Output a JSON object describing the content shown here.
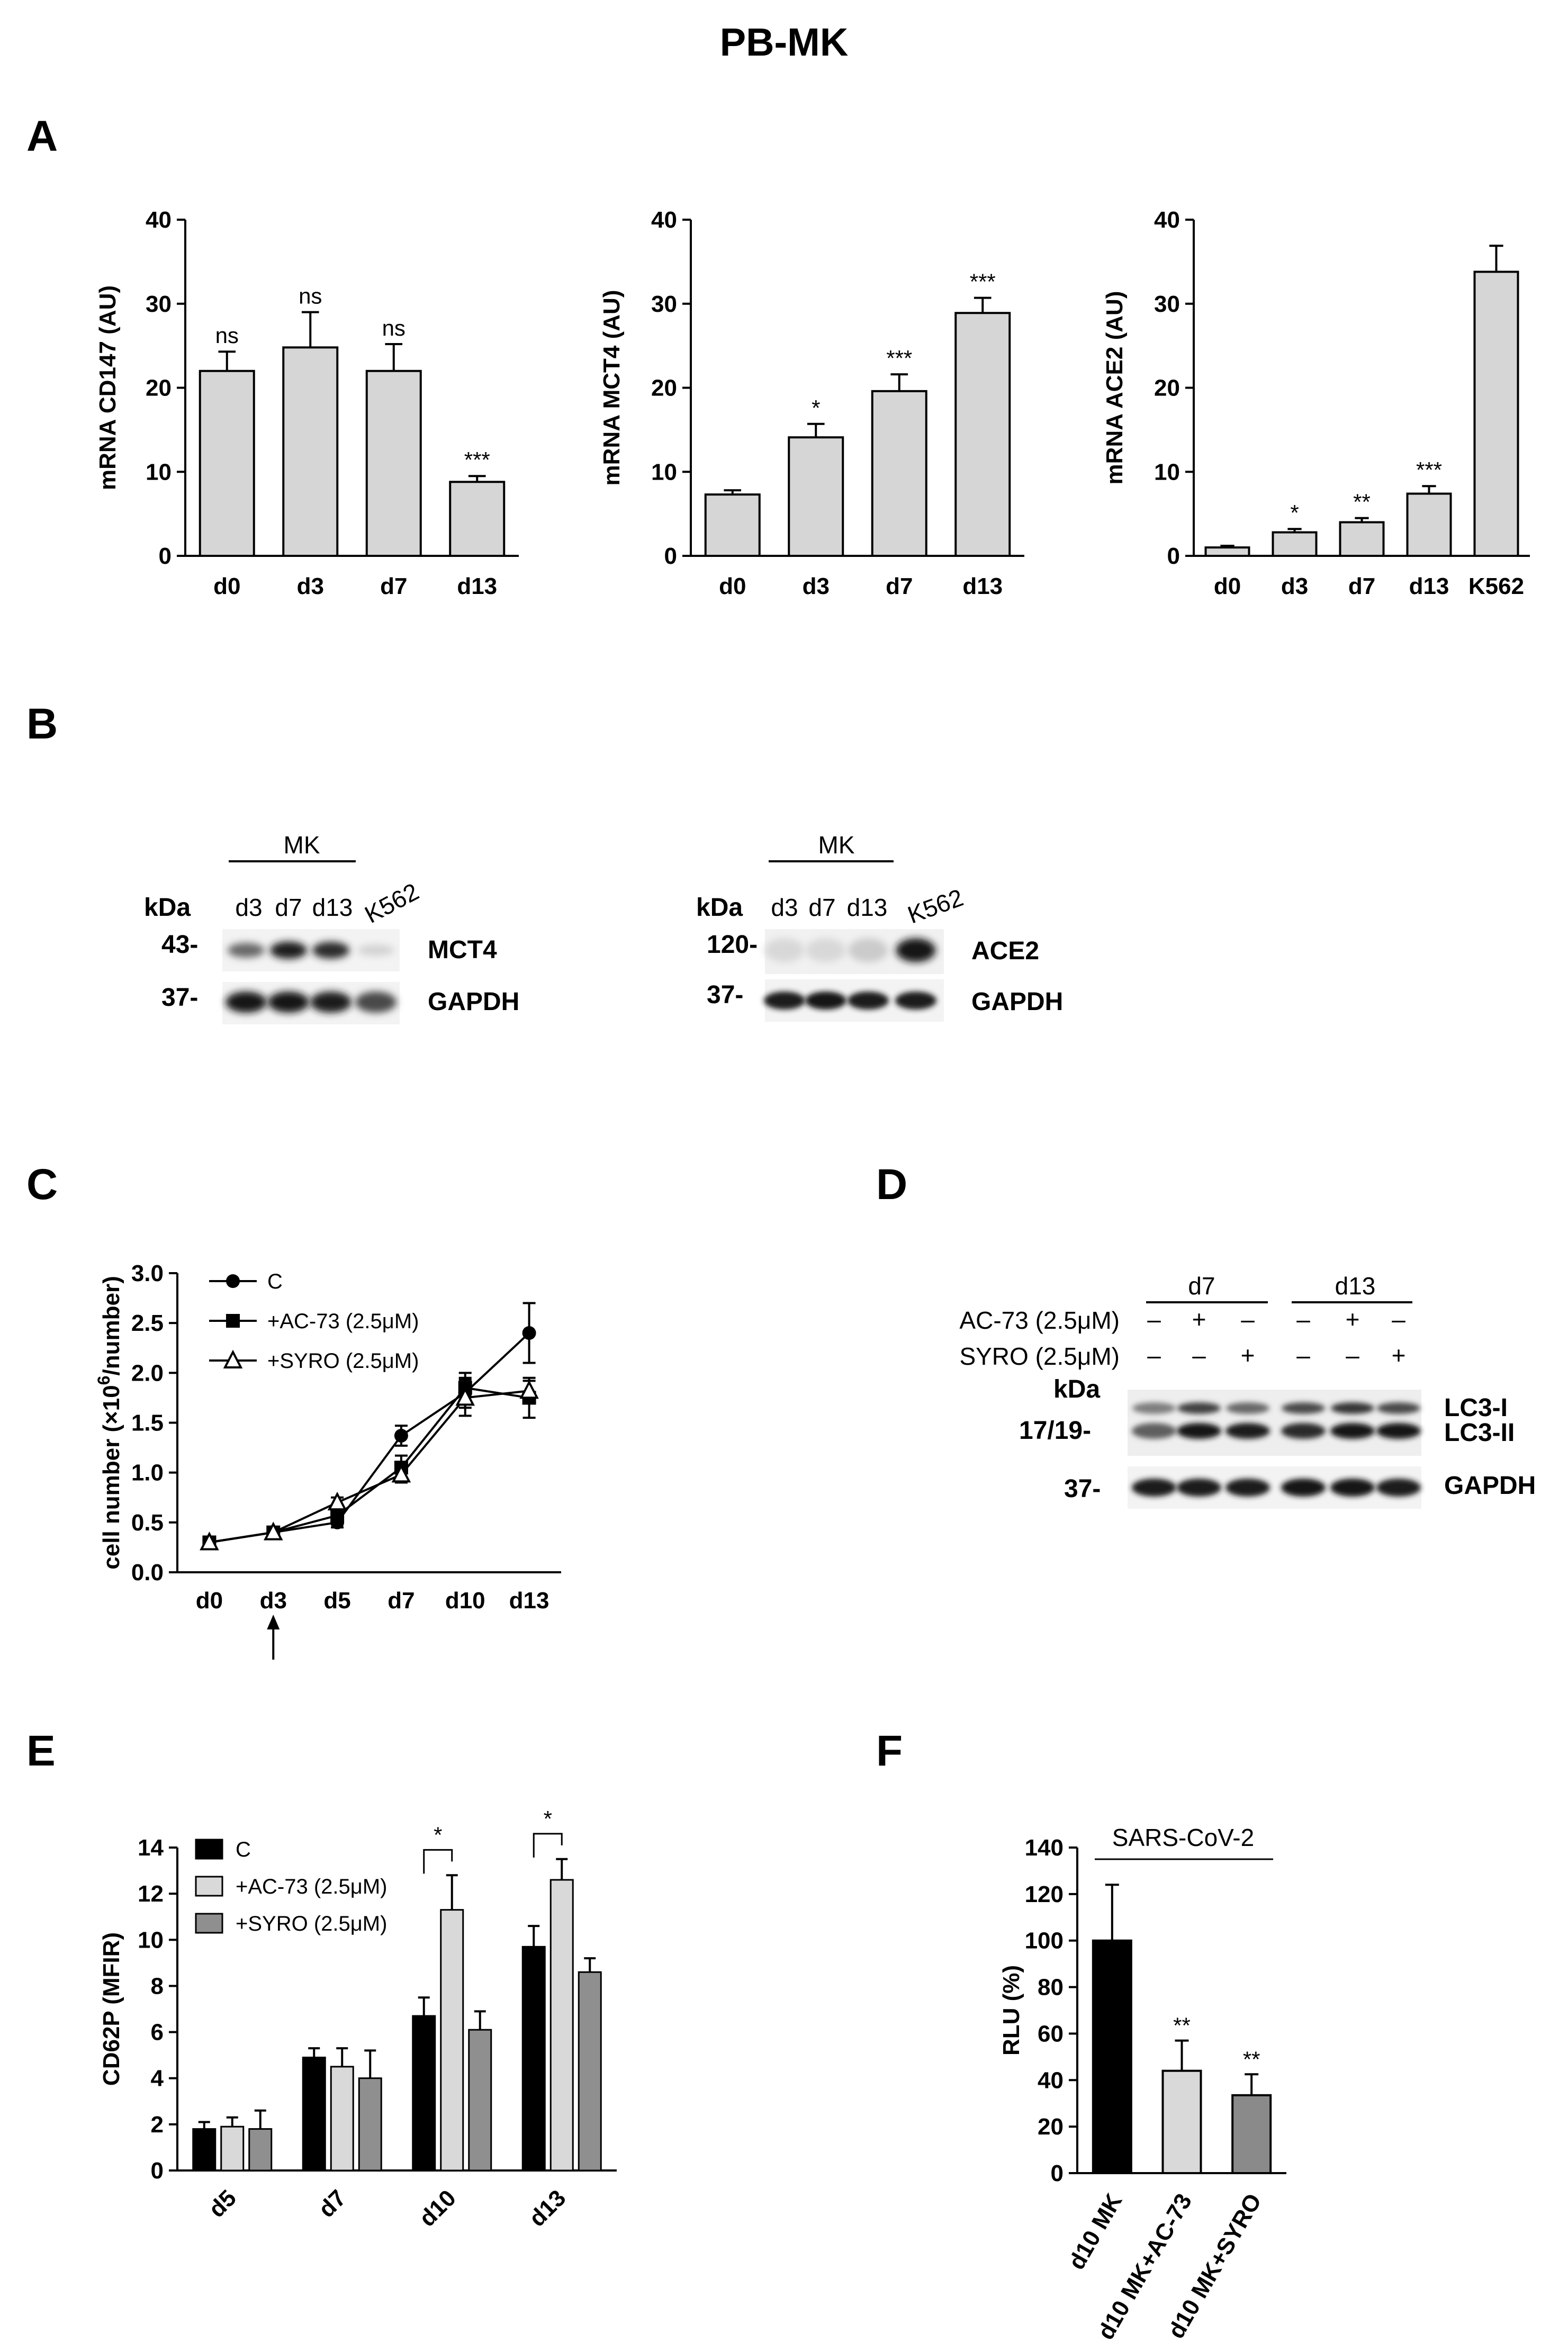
{
  "figure": {
    "title": "PB-MK",
    "panel_labels": [
      "A",
      "B",
      "C",
      "D",
      "E",
      "F"
    ]
  },
  "chart_data": [
    {
      "id": "A1",
      "type": "bar",
      "ylabel": "mRNA CD147 (AU)",
      "xlabel": "",
      "ylim": [
        0,
        40
      ],
      "yticks": [
        0,
        10,
        20,
        30,
        40
      ],
      "categories": [
        "d0",
        "d3",
        "d7",
        "d13"
      ],
      "values": [
        22,
        24.8,
        22,
        8.8
      ],
      "errors": [
        2.3,
        4.2,
        3.2,
        0.7
      ],
      "significance": [
        "ns",
        "ns",
        "ns",
        "***"
      ],
      "bar_color": "#d6d6d6"
    },
    {
      "id": "A2",
      "type": "bar",
      "ylabel": "mRNA MCT4 (AU)",
      "xlabel": "",
      "ylim": [
        0,
        40
      ],
      "yticks": [
        0,
        10,
        20,
        30,
        40
      ],
      "categories": [
        "d0",
        "d3",
        "d7",
        "d13"
      ],
      "values": [
        7.3,
        14.1,
        19.6,
        28.9
      ],
      "errors": [
        0.5,
        1.6,
        2.0,
        1.8
      ],
      "significance": [
        "",
        "*",
        "***",
        "***"
      ],
      "bar_color": "#d6d6d6"
    },
    {
      "id": "A3",
      "type": "bar",
      "ylabel": "mRNA ACE2 (AU)",
      "xlabel": "",
      "ylim": [
        0,
        40
      ],
      "yticks": [
        0,
        10,
        20,
        30,
        40
      ],
      "categories": [
        "d0",
        "d3",
        "d7",
        "d13",
        "K562"
      ],
      "values": [
        1.0,
        2.8,
        4.0,
        7.4,
        33.8
      ],
      "errors": [
        0.2,
        0.4,
        0.5,
        0.9,
        3.1
      ],
      "significance": [
        "",
        "*",
        "**",
        "***",
        ""
      ],
      "bar_color": "#d6d6d6"
    },
    {
      "id": "C",
      "type": "line",
      "ylabel_parts": [
        "cell number (",
        "×10",
        "6",
        "/number)"
      ],
      "xlabel": "",
      "ylim": [
        0,
        3.0
      ],
      "yticks": [
        0.0,
        0.5,
        1.0,
        1.5,
        2.0,
        2.5,
        3.0
      ],
      "ytick_labels": [
        "0.0",
        "0.5",
        "1.0",
        "1.5",
        "2.0",
        "2.5",
        "3.0"
      ],
      "categories": [
        "d0",
        "d3",
        "d5",
        "d7",
        "d10",
        "d13"
      ],
      "legend": "top-left",
      "series": [
        {
          "name": "C",
          "marker": "circle",
          "values": [
            0.3,
            0.4,
            0.5,
            1.37,
            1.8,
            2.4
          ],
          "errors": [
            0.03,
            0.04,
            0.05,
            0.1,
            0.15,
            0.3
          ]
        },
        {
          "name": "+AC-73 (2.5μM)",
          "marker": "square",
          "values": [
            0.3,
            0.4,
            0.57,
            1.05,
            1.85,
            1.75
          ],
          "errors": [
            0.03,
            0.04,
            0.05,
            0.12,
            0.15,
            0.2
          ]
        },
        {
          "name": "+SYRO (2.5μM)",
          "marker": "triangle",
          "values": [
            0.3,
            0.4,
            0.7,
            0.98,
            1.75,
            1.82
          ],
          "errors": [
            0.03,
            0.04,
            0.05,
            0.08,
            0.18,
            0.1
          ]
        }
      ],
      "arrow_at": "d3"
    },
    {
      "id": "E",
      "type": "bar",
      "ylabel": "CD62P (MFIR)",
      "xlabel": "",
      "ylim": [
        0,
        14
      ],
      "yticks": [
        0,
        2,
        4,
        6,
        8,
        10,
        12,
        14
      ],
      "categories": [
        "d5",
        "d7",
        "d10",
        "d13"
      ],
      "legend": "top-left",
      "series": [
        {
          "name": "C",
          "color": "#000000",
          "values": [
            1.8,
            4.9,
            6.7,
            9.7
          ],
          "errors": [
            0.3,
            0.4,
            0.8,
            0.9
          ]
        },
        {
          "name": "+AC-73 (2.5μM)",
          "color": "#d9d9d9",
          "values": [
            1.9,
            4.5,
            11.3,
            12.6
          ],
          "errors": [
            0.4,
            0.8,
            1.5,
            0.9
          ]
        },
        {
          "name": "+SYRO (2.5μM)",
          "color": "#8f8f8f",
          "values": [
            1.8,
            4.0,
            6.1,
            8.6
          ],
          "errors": [
            0.8,
            1.2,
            0.8,
            0.6
          ]
        }
      ],
      "brackets": [
        {
          "category": "d10",
          "label": "*"
        },
        {
          "category": "d13",
          "label": "*"
        }
      ]
    },
    {
      "id": "F",
      "type": "bar",
      "ylabel": "RLU (%)",
      "xlabel": "",
      "group_label": "SARS-CoV-2",
      "ylim": [
        0,
        140
      ],
      "yticks": [
        0,
        20,
        40,
        60,
        80,
        100,
        120,
        140
      ],
      "categories": [
        "d10 MK",
        "d10 MK+AC-73",
        "d10 MK+SYRO"
      ],
      "values": [
        100,
        44,
        33.5
      ],
      "errors": [
        24,
        13,
        9
      ],
      "colors": [
        "#000000",
        "#d9d9d9",
        "#8a8a8a"
      ],
      "significance": [
        "",
        "**",
        "**"
      ]
    }
  ],
  "western_blots": {
    "B_left": {
      "group_label": "MK",
      "unit_label": "kDa",
      "lanes": [
        "d3",
        "d7",
        "d13",
        "K562"
      ],
      "rows": [
        {
          "marker": "43-",
          "protein": "MCT4",
          "intensity": [
            0.55,
            0.9,
            0.85,
            0.05
          ]
        },
        {
          "marker": "37-",
          "protein": "GAPDH",
          "intensity": [
            0.95,
            0.95,
            0.9,
            0.7
          ]
        }
      ]
    },
    "B_right": {
      "group_label": "MK",
      "unit_label": "kDa",
      "lanes": [
        "d3",
        "d7",
        "d13",
        "K562"
      ],
      "rows": [
        {
          "marker": "120-",
          "protein": "ACE2",
          "intensity": [
            0.02,
            0.02,
            0.08,
            0.95
          ]
        },
        {
          "marker": "37-",
          "protein": "GAPDH",
          "intensity": [
            0.9,
            0.95,
            0.9,
            0.9
          ]
        }
      ]
    },
    "D": {
      "groups": [
        "d7",
        "d13"
      ],
      "treatments": [
        {
          "label": "AC-73 (2.5μM)",
          "signs": [
            "–",
            "+",
            "–",
            "–",
            "+",
            "–"
          ]
        },
        {
          "label": "SYRO (2.5μM)",
          "signs": [
            "–",
            "–",
            "+",
            "–",
            "–",
            "+"
          ]
        }
      ],
      "unit_label": "kDa",
      "rows": [
        {
          "marker": "17/19-",
          "proteins": [
            "LC3-I",
            "LC3-II"
          ]
        },
        {
          "marker": "37-",
          "proteins": [
            "GAPDH"
          ]
        }
      ]
    }
  }
}
